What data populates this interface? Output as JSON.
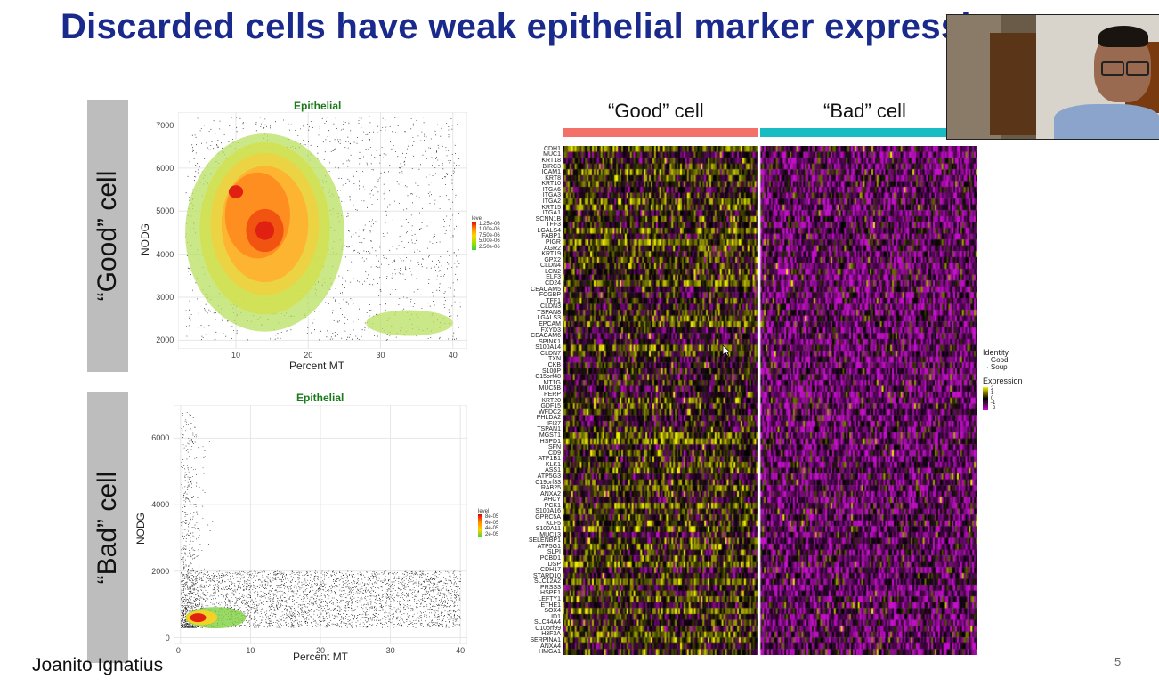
{
  "slide": {
    "title": "Discarded cells have weak epithelial marker expression",
    "author": "Joanito Ignatius",
    "page_number": "5"
  },
  "labels": {
    "good_cell": "“Good” cell",
    "bad_cell": "“Bad” cell"
  },
  "colors": {
    "title": "#1a2a8c",
    "good_bar": "#f4716a",
    "bad_bar": "#18bcc2",
    "heat_low": "#c40fc9",
    "heat_mid": "#000000",
    "heat_high": "#f2f000"
  },
  "chart_data": [
    {
      "type": "scatter",
      "title": "Epithelial",
      "xlabel": "Percent MT",
      "ylabel": "NODG",
      "xticks": [
        "10",
        "20",
        "30",
        "40"
      ],
      "yticks": [
        "2000",
        "3000",
        "4000",
        "5000",
        "6000",
        "7000"
      ],
      "xlim": [
        2,
        42
      ],
      "ylim": [
        1800,
        7300
      ],
      "legend": {
        "title": "level",
        "entries": [
          "1.25e-06",
          "1.00e-06",
          "7.50e-06",
          "5.00e-06",
          "2.50e-06"
        ],
        "placement": "right"
      },
      "density_peak": {
        "x": 14,
        "y": 4550
      }
    },
    {
      "type": "scatter",
      "title": "Epithelial",
      "xlabel": "Percent MT",
      "ylabel": "NODG",
      "xticks": [
        "0",
        "10",
        "20",
        "30",
        "40"
      ],
      "yticks": [
        "0",
        "2000",
        "4000",
        "6000"
      ],
      "xlim": [
        -1,
        41
      ],
      "ylim": [
        -200,
        7000
      ],
      "legend": {
        "title": "level",
        "entries": [
          "8e-05",
          "6e-05",
          "4e-05",
          "2e-05"
        ],
        "placement": "right"
      },
      "density_peak": {
        "x": 2,
        "y": 600
      }
    },
    {
      "type": "heatmap",
      "groups": [
        "“Good” cell",
        "“Bad” cell"
      ],
      "genes": [
        "CDH1",
        "MUC1",
        "KRT18",
        "BIRC3",
        "ICAM1",
        "KRT8",
        "KRT10",
        "ITGA6",
        "ITGA3",
        "ITGA2",
        "KRT15",
        "ITGA1",
        "SCNN1B",
        "TFF3",
        "LGALS4",
        "FABP1",
        "PIGR",
        "AGR2",
        "KRT19",
        "GPX2",
        "CLDN4",
        "LCN2",
        "ELF3",
        "CD24",
        "CEACAM5",
        "FCGBP",
        "TFF1",
        "CLDN3",
        "TSPAN8",
        "LGALS3",
        "EPCAM",
        "FXYD3",
        "CEACAM6",
        "SPINK1",
        "S100A14",
        "CLDN7",
        "TXN",
        "CKB",
        "S100P",
        "C15orf48",
        "MT1G",
        "MUC5B",
        "PERP",
        "KRT20",
        "GDF15",
        "WFDC2",
        "PHLDA2",
        "IFI27",
        "TSPAN1",
        "MGST1",
        "HSPD1",
        "SFN",
        "CD9",
        "ATP1B1",
        "KLK1",
        "ASS1",
        "ATP5G3",
        "C19orf33",
        "RAB25",
        "ANXA2",
        "AHCY",
        "PCK1",
        "S100A16",
        "GPRC5A",
        "KLF5",
        "S100A11",
        "MUC13",
        "SELENBP1",
        "ATP5G1",
        "SLPI",
        "PCBD1",
        "DSP",
        "CDH17",
        "STARD10",
        "SLC12A2",
        "PRSS3",
        "HSPE1",
        "LEFTY1",
        "ETHE1",
        "SOX4",
        "ID1",
        "SLC44A4",
        "C10orf99",
        "H3F3A",
        "SERPINA1",
        "ANXA4",
        "HMGA1"
      ],
      "legend": {
        "identity_title": "Identity",
        "identity_entries": [
          "Good",
          "Soup"
        ],
        "expression_title": "Expression",
        "expression_ticks": [
          "2",
          "1",
          "0",
          "-1",
          "-2"
        ]
      }
    }
  ]
}
